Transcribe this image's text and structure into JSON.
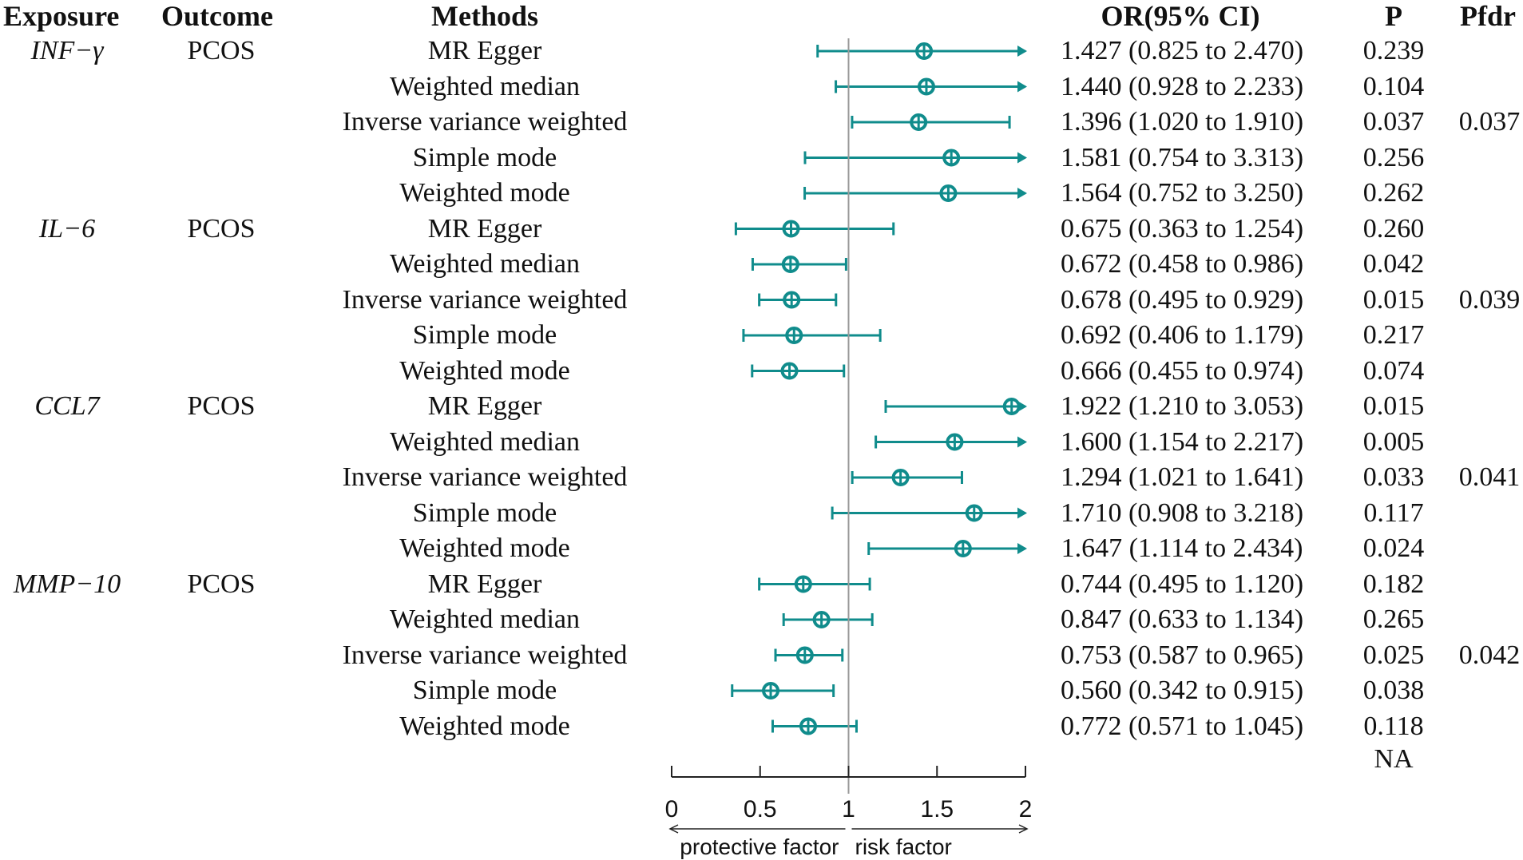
{
  "headers": {
    "exposure": "Exposure",
    "outcome": "Outcome",
    "methods": "Methods",
    "or": "OR(95% CI)",
    "p": "P",
    "pfdr": "Pfdr"
  },
  "colors": {
    "accent": "#108c8c",
    "refline": "#999999",
    "axis": "#222222"
  },
  "na_text": "NA",
  "chart_data": {
    "type": "forest",
    "xlabel_left": "protective factor",
    "xlabel_right": "risk factor",
    "xlim": [
      0,
      2
    ],
    "xticks": [
      "0",
      "0.5",
      "1",
      "1.5",
      "2"
    ],
    "reference_line": 1,
    "groups": [
      {
        "exposure": "INF−γ",
        "outcome": "PCOS",
        "rows": [
          {
            "method": "MR Egger",
            "or": 1.427,
            "lo": 0.825,
            "hi": 2.47,
            "ci": "1.427 (0.825 to 2.470)",
            "p": "0.239",
            "pfdr": ""
          },
          {
            "method": "Weighted median",
            "or": 1.44,
            "lo": 0.928,
            "hi": 2.233,
            "ci": "1.440 (0.928 to 2.233)",
            "p": "0.104",
            "pfdr": ""
          },
          {
            "method": "Inverse variance weighted",
            "or": 1.396,
            "lo": 1.02,
            "hi": 1.91,
            "ci": "1.396 (1.020 to 1.910)",
            "p": "0.037",
            "pfdr": "0.037"
          },
          {
            "method": "Simple mode",
            "or": 1.581,
            "lo": 0.754,
            "hi": 3.313,
            "ci": "1.581 (0.754 to 3.313)",
            "p": "0.256",
            "pfdr": ""
          },
          {
            "method": "Weighted mode",
            "or": 1.564,
            "lo": 0.752,
            "hi": 3.25,
            "ci": "1.564 (0.752 to 3.250)",
            "p": "0.262",
            "pfdr": ""
          }
        ]
      },
      {
        "exposure": "IL−6",
        "outcome": "PCOS",
        "rows": [
          {
            "method": "MR Egger",
            "or": 0.675,
            "lo": 0.363,
            "hi": 1.254,
            "ci": "0.675 (0.363 to 1.254)",
            "p": "0.260",
            "pfdr": ""
          },
          {
            "method": "Weighted median",
            "or": 0.672,
            "lo": 0.458,
            "hi": 0.986,
            "ci": "0.672 (0.458 to 0.986)",
            "p": "0.042",
            "pfdr": ""
          },
          {
            "method": "Inverse variance weighted",
            "or": 0.678,
            "lo": 0.495,
            "hi": 0.929,
            "ci": "0.678 (0.495 to 0.929)",
            "p": "0.015",
            "pfdr": "0.039"
          },
          {
            "method": "Simple mode",
            "or": 0.692,
            "lo": 0.406,
            "hi": 1.179,
            "ci": "0.692 (0.406 to 1.179)",
            "p": "0.217",
            "pfdr": ""
          },
          {
            "method": "Weighted mode",
            "or": 0.666,
            "lo": 0.455,
            "hi": 0.974,
            "ci": "0.666 (0.455 to 0.974)",
            "p": "0.074",
            "pfdr": ""
          }
        ]
      },
      {
        "exposure": "CCL7",
        "outcome": "PCOS",
        "rows": [
          {
            "method": "MR Egger",
            "or": 1.922,
            "lo": 1.21,
            "hi": 3.053,
            "ci": "1.922 (1.210 to 3.053)",
            "p": "0.015",
            "pfdr": ""
          },
          {
            "method": "Weighted median",
            "or": 1.6,
            "lo": 1.154,
            "hi": 2.217,
            "ci": "1.600 (1.154 to 2.217)",
            "p": "0.005",
            "pfdr": ""
          },
          {
            "method": "Inverse variance weighted",
            "or": 1.294,
            "lo": 1.021,
            "hi": 1.641,
            "ci": "1.294 (1.021 to 1.641)",
            "p": "0.033",
            "pfdr": "0.041"
          },
          {
            "method": "Simple mode",
            "or": 1.71,
            "lo": 0.908,
            "hi": 3.218,
            "ci": "1.710 (0.908 to 3.218)",
            "p": "0.117",
            "pfdr": ""
          },
          {
            "method": "Weighted mode",
            "or": 1.647,
            "lo": 1.114,
            "hi": 2.434,
            "ci": "1.647 (1.114 to 2.434)",
            "p": "0.024",
            "pfdr": ""
          }
        ]
      },
      {
        "exposure": "MMP−10",
        "outcome": "PCOS",
        "rows": [
          {
            "method": "MR Egger",
            "or": 0.744,
            "lo": 0.495,
            "hi": 1.12,
            "ci": "0.744 (0.495 to 1.120)",
            "p": "0.182",
            "pfdr": ""
          },
          {
            "method": "Weighted median",
            "or": 0.847,
            "lo": 0.633,
            "hi": 1.134,
            "ci": "0.847 (0.633 to 1.134)",
            "p": "0.265",
            "pfdr": ""
          },
          {
            "method": "Inverse variance weighted",
            "or": 0.753,
            "lo": 0.587,
            "hi": 0.965,
            "ci": "0.753 (0.587 to 0.965)",
            "p": "0.025",
            "pfdr": "0.042"
          },
          {
            "method": "Simple mode",
            "or": 0.56,
            "lo": 0.342,
            "hi": 0.915,
            "ci": "0.560 (0.342 to 0.915)",
            "p": "0.038",
            "pfdr": ""
          },
          {
            "method": "Weighted mode",
            "or": 0.772,
            "lo": 0.571,
            "hi": 1.045,
            "ci": "0.772 (0.571 to 1.045)",
            "p": "0.118",
            "pfdr": ""
          }
        ]
      }
    ]
  }
}
